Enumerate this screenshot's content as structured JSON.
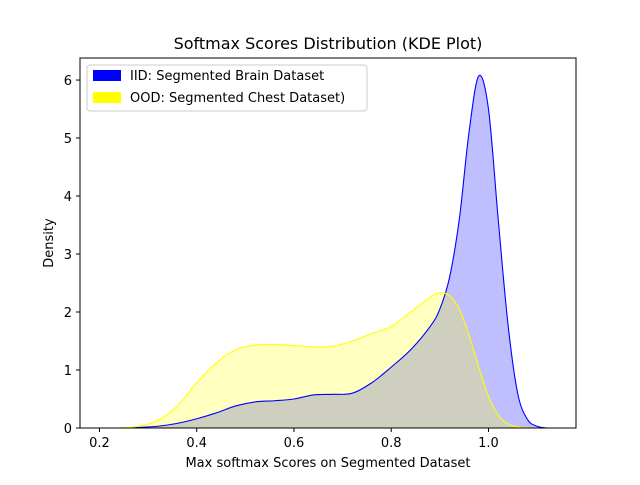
{
  "chart_data": {
    "type": "area",
    "title": "Softmax Scores Distribution (KDE Plot)",
    "xlabel": "Max softmax Scores on Segmented Dataset",
    "ylabel": "Density",
    "xlim": [
      0.16,
      1.18
    ],
    "ylim": [
      0,
      6.38
    ],
    "xticks": [
      0.2,
      0.4,
      0.6,
      0.8,
      1.0
    ],
    "yticks": [
      0,
      1,
      2,
      3,
      4,
      5,
      6
    ],
    "xtick_labels": [
      "0.2",
      "0.4",
      "0.6",
      "0.8",
      "1.0"
    ],
    "ytick_labels": [
      "0",
      "1",
      "2",
      "3",
      "4",
      "5",
      "6"
    ],
    "grid": false,
    "legend_position": "top-left",
    "series": [
      {
        "name": "IID: Segmented Brain Dataset",
        "line_color": "#0000ff",
        "fill_color": "#0000ff",
        "fill_alpha": 0.25,
        "x": [
          0.24,
          0.28,
          0.32,
          0.36,
          0.4,
          0.44,
          0.48,
          0.52,
          0.56,
          0.6,
          0.64,
          0.68,
          0.72,
          0.76,
          0.8,
          0.84,
          0.88,
          0.9,
          0.92,
          0.94,
          0.96,
          0.98,
          1.0,
          1.02,
          1.04,
          1.06,
          1.08,
          1.1,
          1.12
        ],
        "y": [
          0.0,
          0.01,
          0.03,
          0.08,
          0.16,
          0.26,
          0.38,
          0.45,
          0.47,
          0.5,
          0.57,
          0.58,
          0.6,
          0.78,
          1.05,
          1.35,
          1.75,
          2.05,
          2.6,
          3.6,
          5.1,
          6.07,
          5.5,
          3.6,
          1.8,
          0.6,
          0.15,
          0.03,
          0.0
        ]
      },
      {
        "name": "OOD: Segmented Chest Dataset)",
        "line_color": "#ffff00",
        "fill_color": "#ffff00",
        "fill_alpha": 0.25,
        "x": [
          0.24,
          0.28,
          0.32,
          0.36,
          0.4,
          0.44,
          0.48,
          0.52,
          0.56,
          0.6,
          0.64,
          0.68,
          0.72,
          0.76,
          0.8,
          0.84,
          0.88,
          0.9,
          0.92,
          0.94,
          0.96,
          0.98,
          1.0,
          1.02,
          1.04,
          1.06,
          1.08,
          1.1
        ],
        "y": [
          0.0,
          0.03,
          0.13,
          0.38,
          0.78,
          1.12,
          1.35,
          1.43,
          1.44,
          1.42,
          1.4,
          1.41,
          1.5,
          1.63,
          1.75,
          2.0,
          2.25,
          2.33,
          2.28,
          2.05,
          1.6,
          1.05,
          0.55,
          0.22,
          0.07,
          0.02,
          0.005,
          0.0
        ]
      }
    ]
  }
}
